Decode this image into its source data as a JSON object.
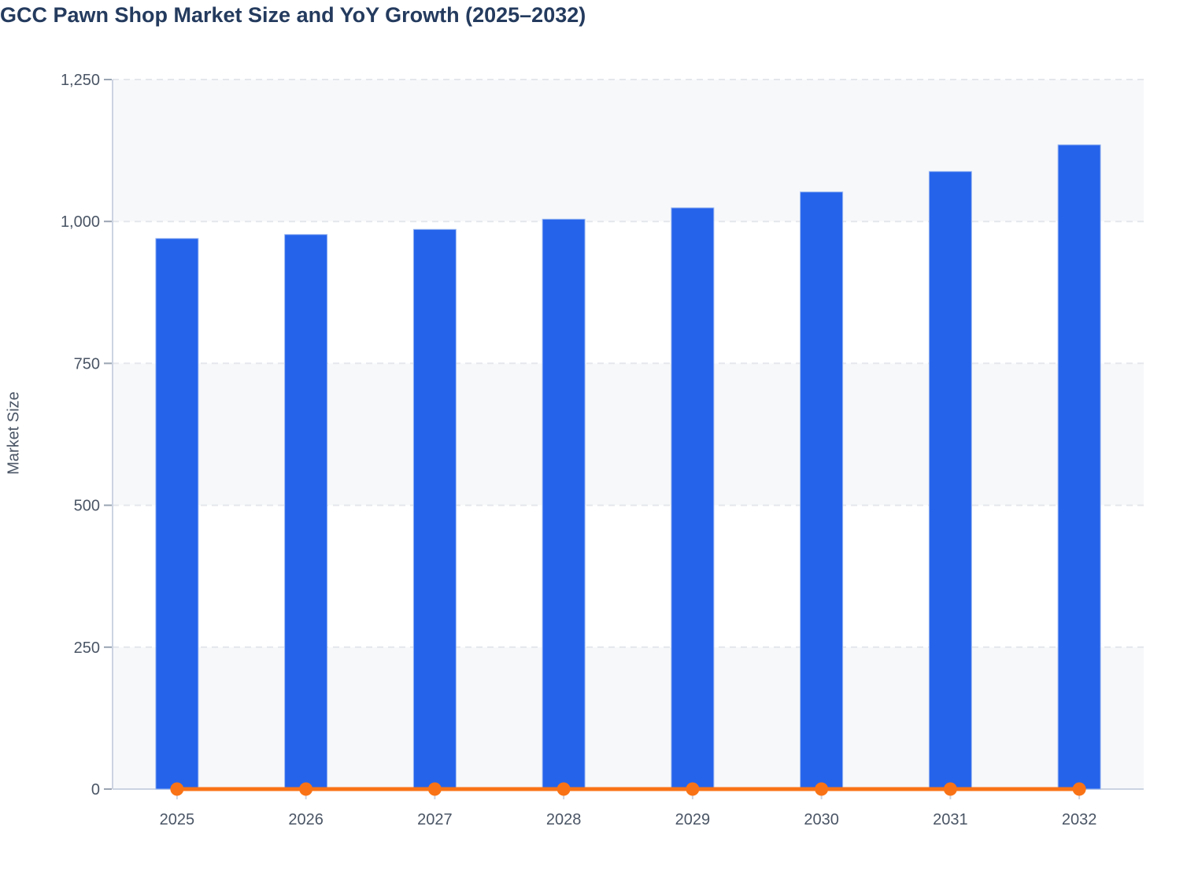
{
  "title": "GCC Pawn Shop Market Size and YoY Growth (2025–2032)",
  "chart_data": {
    "type": "bar+line",
    "title": "GCC Pawn Shop Market Size and YoY Growth (2025–2032)",
    "categories": [
      "2025",
      "2026",
      "2027",
      "2028",
      "2029",
      "2030",
      "2031",
      "2032"
    ],
    "series": [
      {
        "name": "Market Size",
        "type": "bar",
        "color": "#2563eb",
        "values": [
          970,
          977,
          986,
          1004,
          1024,
          1052,
          1088,
          1135
        ]
      },
      {
        "name": "YoY Growth",
        "type": "line",
        "color": "#f97316",
        "values": [
          0,
          0,
          0,
          0,
          0,
          0,
          0,
          0
        ]
      }
    ],
    "xlabel": "",
    "ylabel": "Market Size",
    "ylim": [
      0,
      1250
    ],
    "yticks": [
      0,
      250,
      500,
      750,
      1000,
      1250
    ],
    "ytick_labels": [
      "0",
      "250",
      "500",
      "750",
      "1,000",
      "1,250"
    ],
    "grid": "horizontal dashed gridlines with alternating band fill",
    "legend": "none"
  },
  "colors": {
    "title_text": "#243b5e",
    "axis_text": "#4a5565",
    "bar_fill": "#2563eb",
    "bar_border": "#9db9f1",
    "line_color": "#f97316",
    "band_fill": "#f7f8fa",
    "gridline": "#e4e7ec",
    "axis_line": "#ccd4e2",
    "tick_mark": "#9aa4b2"
  }
}
